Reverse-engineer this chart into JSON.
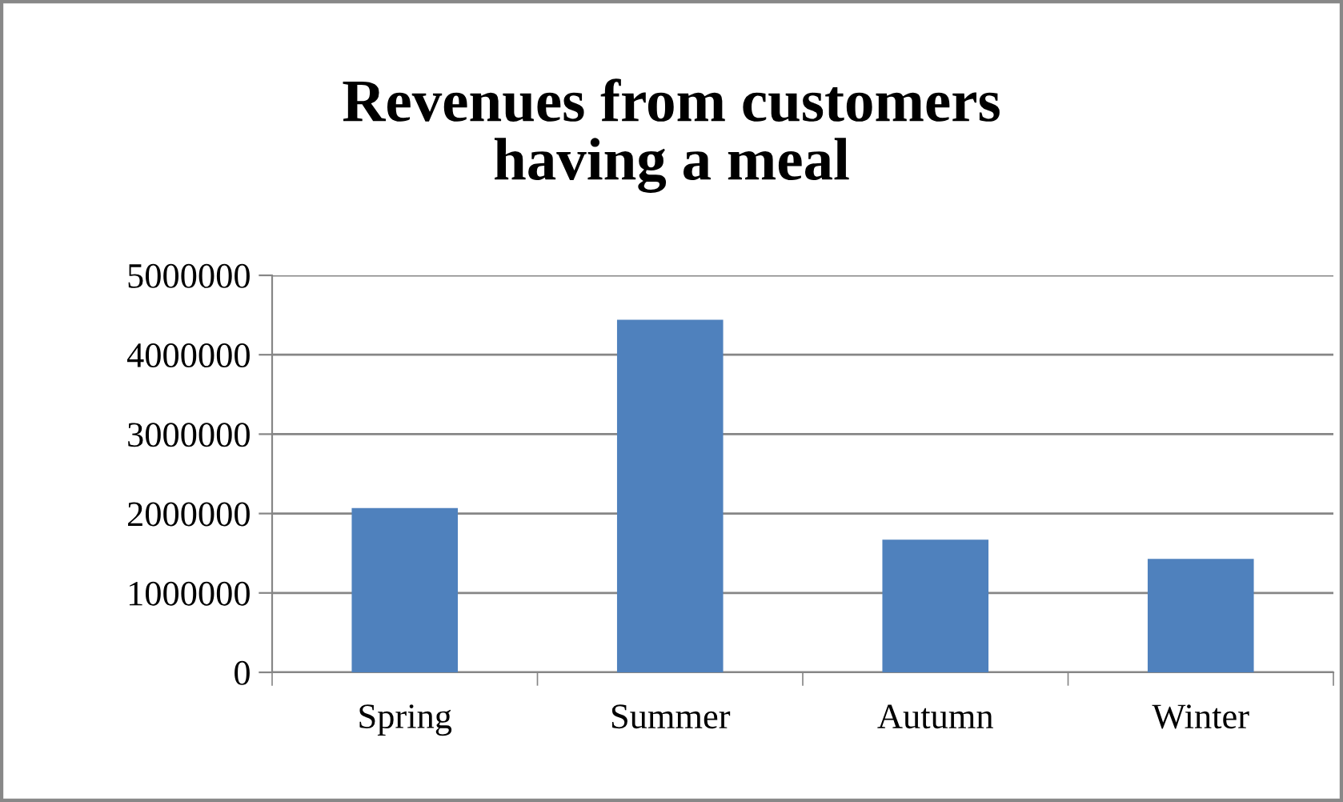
{
  "chart_data": {
    "type": "bar",
    "title": "Revenues from customers\nhaving a meal",
    "categories": [
      "Spring",
      "Summer",
      "Autumn",
      "Winter"
    ],
    "values": [
      2070000,
      4440000,
      1670000,
      1430000
    ],
    "color": "#4f81bd",
    "ylim": [
      0,
      5000000
    ],
    "yticks": [
      0,
      1000000,
      2000000,
      3000000,
      4000000,
      5000000
    ],
    "grid": "y",
    "legend": false
  }
}
